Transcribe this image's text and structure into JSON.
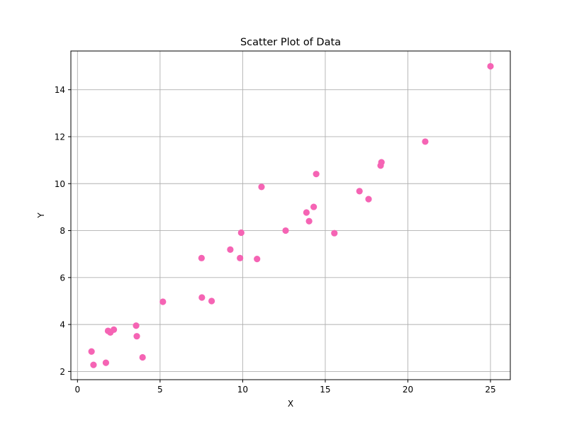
{
  "chart_data": {
    "type": "scatter",
    "title": "Scatter Plot of Data",
    "xlabel": "X",
    "ylabel": "Y",
    "xlim": [
      -0.4,
      26.2
    ],
    "ylim": [
      1.65,
      15.65
    ],
    "xticks": [
      0,
      5,
      10,
      15,
      20,
      25
    ],
    "yticks": [
      2,
      4,
      6,
      8,
      10,
      12,
      14
    ],
    "grid": true,
    "color": "#f564b4",
    "points": [
      {
        "x": 0.85,
        "y": 2.85
      },
      {
        "x": 0.97,
        "y": 2.28
      },
      {
        "x": 1.72,
        "y": 2.37
      },
      {
        "x": 1.85,
        "y": 3.73
      },
      {
        "x": 1.99,
        "y": 3.66
      },
      {
        "x": 2.2,
        "y": 3.78
      },
      {
        "x": 3.55,
        "y": 3.95
      },
      {
        "x": 3.59,
        "y": 3.5
      },
      {
        "x": 3.94,
        "y": 2.6
      },
      {
        "x": 5.17,
        "y": 4.97
      },
      {
        "x": 7.51,
        "y": 6.83
      },
      {
        "x": 7.53,
        "y": 5.15
      },
      {
        "x": 8.12,
        "y": 5.0
      },
      {
        "x": 9.25,
        "y": 7.19
      },
      {
        "x": 9.84,
        "y": 6.83
      },
      {
        "x": 9.91,
        "y": 7.91
      },
      {
        "x": 10.87,
        "y": 6.79
      },
      {
        "x": 11.14,
        "y": 9.86
      },
      {
        "x": 12.6,
        "y": 8.0
      },
      {
        "x": 13.86,
        "y": 8.77
      },
      {
        "x": 14.02,
        "y": 8.4
      },
      {
        "x": 14.3,
        "y": 9.01
      },
      {
        "x": 14.45,
        "y": 10.41
      },
      {
        "x": 15.55,
        "y": 7.89
      },
      {
        "x": 17.07,
        "y": 9.68
      },
      {
        "x": 17.62,
        "y": 9.34
      },
      {
        "x": 18.35,
        "y": 10.77
      },
      {
        "x": 18.4,
        "y": 10.91
      },
      {
        "x": 21.05,
        "y": 11.79
      },
      {
        "x": 25.0,
        "y": 15.0
      }
    ]
  }
}
